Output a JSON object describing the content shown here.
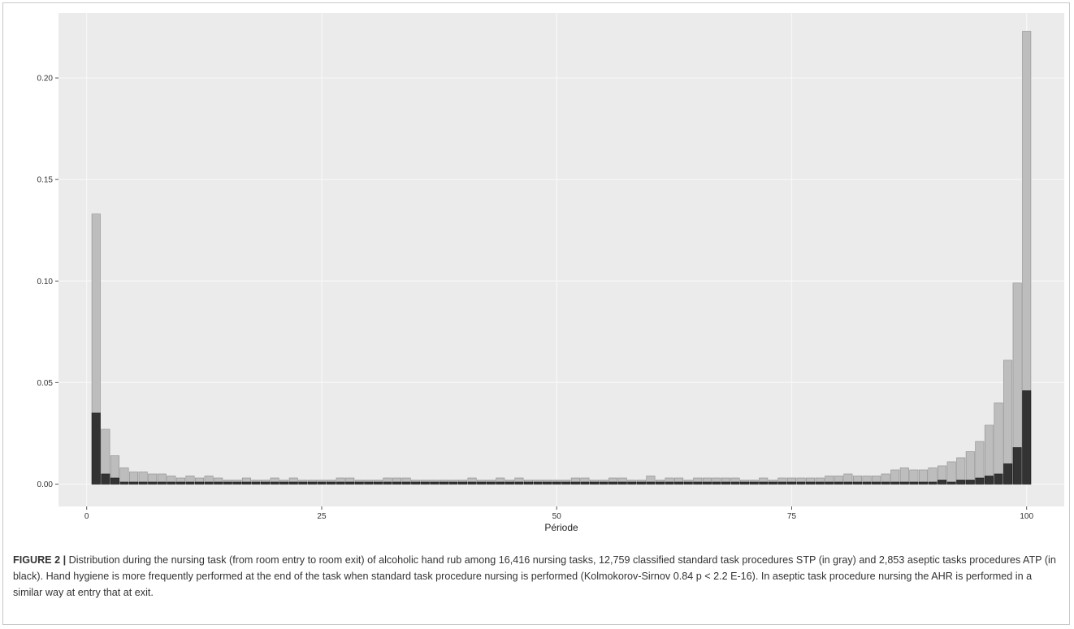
{
  "caption": {
    "label": "FIGURE 2 |",
    "text": "Distribution during the nursing task (from room entry to room exit) of alcoholic hand rub among 16,416 nursing tasks, 12,759 classified standard task procedures STP (in gray) and 2,853 aseptic tasks procedures ATP (in black). Hand hygiene is more frequently performed at the end of the task when standard task procedure nursing is performed (Kolmokorov-Sirnov 0.84 p < 2.2 E-16). In aseptic task procedure nursing the AHR is performed in a similar way at entry that at exit."
  },
  "chart_data": {
    "type": "bar",
    "stacked": false,
    "title": "",
    "xlabel": "Période",
    "ylabel": "",
    "xlim": [
      -3,
      104
    ],
    "ylim": [
      -0.011,
      0.232
    ],
    "xticks": [
      0,
      25,
      50,
      75,
      100
    ],
    "xtick_labels": [
      "0",
      "25",
      "50",
      "75",
      "100"
    ],
    "yticks": [
      0,
      0.05,
      0.1,
      0.15,
      0.2
    ],
    "ytick_labels": [
      "0.00",
      "0.05",
      "0.10",
      "0.15",
      "0.20"
    ],
    "grid": true,
    "legend": "none",
    "colors": {
      "panel_bg": "#ebebeb",
      "grid": "#f7f7f7",
      "stp_fill": "#bdbdbd",
      "stp_stroke": "#8c8c8c",
      "atp_fill": "#333333",
      "atp_stroke": "#1a1a1a"
    },
    "x": [
      1,
      2,
      3,
      4,
      5,
      6,
      7,
      8,
      9,
      10,
      11,
      12,
      13,
      14,
      15,
      16,
      17,
      18,
      19,
      20,
      21,
      22,
      23,
      24,
      25,
      26,
      27,
      28,
      29,
      30,
      31,
      32,
      33,
      34,
      35,
      36,
      37,
      38,
      39,
      40,
      41,
      42,
      43,
      44,
      45,
      46,
      47,
      48,
      49,
      50,
      51,
      52,
      53,
      54,
      55,
      56,
      57,
      58,
      59,
      60,
      61,
      62,
      63,
      64,
      65,
      66,
      67,
      68,
      69,
      70,
      71,
      72,
      73,
      74,
      75,
      76,
      77,
      78,
      79,
      80,
      81,
      82,
      83,
      84,
      85,
      86,
      87,
      88,
      89,
      90,
      91,
      92,
      93,
      94,
      95,
      96,
      97,
      98,
      99,
      100
    ],
    "series": [
      {
        "values": [
          0.133,
          0.027,
          0.014,
          0.008,
          0.006,
          0.006,
          0.005,
          0.005,
          0.004,
          0.003,
          0.004,
          0.003,
          0.004,
          0.003,
          0.002,
          0.002,
          0.003,
          0.002,
          0.002,
          0.003,
          0.002,
          0.003,
          0.002,
          0.002,
          0.002,
          0.002,
          0.003,
          0.003,
          0.002,
          0.002,
          0.002,
          0.003,
          0.003,
          0.003,
          0.002,
          0.002,
          0.002,
          0.002,
          0.002,
          0.002,
          0.003,
          0.002,
          0.002,
          0.003,
          0.002,
          0.003,
          0.002,
          0.002,
          0.002,
          0.002,
          0.002,
          0.003,
          0.003,
          0.002,
          0.002,
          0.003,
          0.003,
          0.002,
          0.002,
          0.004,
          0.002,
          0.003,
          0.003,
          0.002,
          0.003,
          0.003,
          0.003,
          0.003,
          0.003,
          0.002,
          0.002,
          0.003,
          0.002,
          0.003,
          0.003,
          0.003,
          0.003,
          0.003,
          0.004,
          0.004,
          0.005,
          0.004,
          0.004,
          0.004,
          0.005,
          0.007,
          0.008,
          0.007,
          0.007,
          0.008,
          0.009,
          0.011,
          0.013,
          0.016,
          0.021,
          0.029,
          0.04,
          0.061,
          0.099,
          0.223
        ]
      },
      {
        "values": [
          0.035,
          0.005,
          0.003,
          0.001,
          0.001,
          0.001,
          0.001,
          0.001,
          0.001,
          0.001,
          0.001,
          0.001,
          0.001,
          0.001,
          0.001,
          0.001,
          0.001,
          0.001,
          0.001,
          0.001,
          0.001,
          0.001,
          0.001,
          0.001,
          0.001,
          0.001,
          0.001,
          0.001,
          0.001,
          0.001,
          0.001,
          0.001,
          0.001,
          0.001,
          0.001,
          0.001,
          0.001,
          0.001,
          0.001,
          0.001,
          0.001,
          0.001,
          0.001,
          0.001,
          0.001,
          0.001,
          0.001,
          0.001,
          0.001,
          0.001,
          0.001,
          0.001,
          0.001,
          0.001,
          0.001,
          0.001,
          0.001,
          0.001,
          0.001,
          0.001,
          0.001,
          0.001,
          0.001,
          0.001,
          0.001,
          0.001,
          0.001,
          0.001,
          0.001,
          0.001,
          0.001,
          0.001,
          0.001,
          0.001,
          0.001,
          0.001,
          0.001,
          0.001,
          0.001,
          0.001,
          0.001,
          0.001,
          0.001,
          0.001,
          0.001,
          0.001,
          0.001,
          0.001,
          0.001,
          0.001,
          0.002,
          0.001,
          0.002,
          0.002,
          0.003,
          0.004,
          0.005,
          0.01,
          0.018,
          0.046
        ]
      }
    ]
  }
}
